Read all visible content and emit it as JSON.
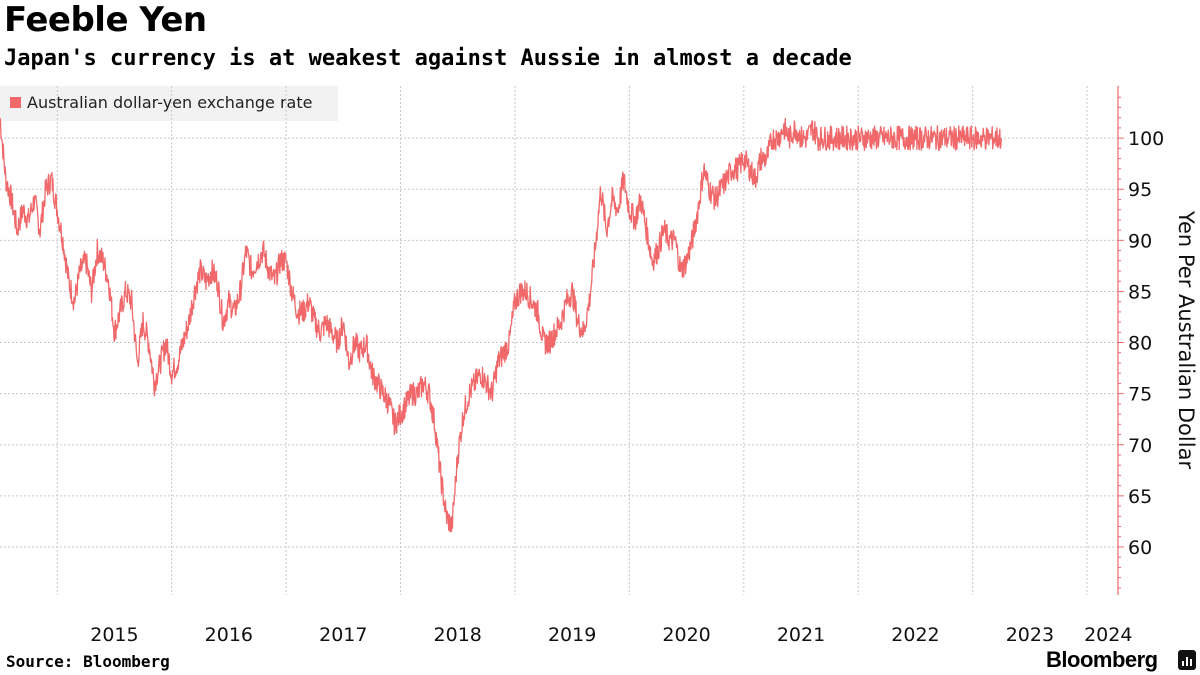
{
  "header": {
    "title": "Feeble Yen",
    "subtitle": "Japan's currency is at weakest against Aussie in almost a decade"
  },
  "footer": {
    "source": "Source: Bloomberg",
    "brand": "Bloomberg"
  },
  "colors": {
    "series": "#f0686a",
    "grid": "#c8c8c8",
    "axis": "#f0686a",
    "legend_bg": "#f2f2f2"
  },
  "chart_data": {
    "type": "line",
    "title": "Feeble Yen",
    "subtitle": "Japan's currency is at weakest against Aussie in almost a decade",
    "xlabel": "",
    "ylabel": "Yen Per Australian Dollar",
    "ylim": [
      55.3,
      105.1
    ],
    "yticks": [
      60,
      65,
      70,
      75,
      80,
      85,
      90,
      95,
      100
    ],
    "xlim": [
      2014.5,
      2024.27
    ],
    "xticks": [
      "2015",
      "2016",
      "2017",
      "2018",
      "2019",
      "2020",
      "2021",
      "2022",
      "2023",
      "2024"
    ],
    "legend": [
      "Australian dollar-yen exchange rate"
    ],
    "legend_position": "top-left",
    "grid": true,
    "series": [
      {
        "name": "Australian dollar-yen exchange rate",
        "x": [
          2014.5,
          2014.55,
          2014.6,
          2014.65,
          2014.7,
          2014.75,
          2014.8,
          2014.85,
          2014.9,
          2014.95,
          2015.0,
          2015.05,
          2015.1,
          2015.15,
          2015.2,
          2015.25,
          2015.3,
          2015.35,
          2015.4,
          2015.45,
          2015.5,
          2015.55,
          2015.6,
          2015.65,
          2015.7,
          2015.75,
          2015.8,
          2015.85,
          2015.9,
          2015.95,
          2016.0,
          2016.05,
          2016.1,
          2016.15,
          2016.2,
          2016.25,
          2016.3,
          2016.35,
          2016.4,
          2016.45,
          2016.5,
          2016.55,
          2016.6,
          2016.65,
          2016.7,
          2016.75,
          2016.8,
          2016.85,
          2016.9,
          2016.95,
          2017.0,
          2017.05,
          2017.1,
          2017.15,
          2017.2,
          2017.25,
          2017.3,
          2017.35,
          2017.4,
          2017.45,
          2017.5,
          2017.55,
          2017.6,
          2017.65,
          2017.7,
          2017.75,
          2017.8,
          2017.85,
          2017.9,
          2017.95,
          2018.0,
          2018.05,
          2018.1,
          2018.15,
          2018.2,
          2018.25,
          2018.3,
          2018.35,
          2018.4,
          2018.45,
          2018.5,
          2018.55,
          2018.6,
          2018.65,
          2018.7,
          2018.75,
          2018.8,
          2018.85,
          2018.9,
          2018.95,
          2019.0,
          2019.05,
          2019.1,
          2019.15,
          2019.2,
          2019.25,
          2019.3,
          2019.35,
          2019.4,
          2019.45,
          2019.5,
          2019.55,
          2019.6,
          2019.65,
          2019.7,
          2019.75,
          2019.8,
          2019.85,
          2019.9,
          2019.95,
          2020.0,
          2020.05,
          2020.1,
          2020.15,
          2020.2,
          2020.25,
          2020.3,
          2020.35,
          2020.4,
          2020.45,
          2020.5,
          2020.55,
          2020.6,
          2020.65,
          2020.7,
          2020.75,
          2020.8,
          2020.85,
          2020.9,
          2020.95,
          2021.0,
          2021.05,
          2021.1,
          2021.15,
          2021.2,
          2021.25,
          2021.3,
          2021.35,
          2021.4,
          2021.45,
          2021.5,
          2021.55,
          2021.6,
          2021.65,
          2021.7,
          2021.75,
          2021.8,
          2021.85,
          2021.9,
          2021.95,
          2022.0,
          2022.05,
          2022.1,
          2022.15,
          2022.2,
          2022.25,
          2022.3,
          2022.35,
          2022.4,
          2022.45,
          2022.5,
          2022.55,
          2022.6,
          2022.65,
          2022.7,
          2022.75,
          2022.8,
          2022.85,
          2022.9,
          2022.95,
          2023.0,
          2023.05,
          2023.1,
          2023.15,
          2023.2,
          2023.25
        ],
        "values": [
          102,
          96,
          94,
          91,
          93,
          92,
          94,
          91,
          95,
          96,
          93,
          90,
          86,
          84,
          87,
          88,
          85,
          89,
          88,
          86,
          81,
          83,
          85,
          84,
          78,
          82,
          80,
          76,
          78,
          80,
          77,
          78,
          80,
          82,
          85,
          87,
          86,
          87,
          86,
          82,
          84,
          83,
          85,
          89,
          87,
          88,
          89,
          87,
          86,
          88,
          88,
          85,
          83,
          83,
          84,
          82,
          81,
          82,
          81,
          80,
          82,
          78,
          80,
          79,
          80,
          77,
          76,
          75,
          74,
          72,
          73,
          74,
          75,
          75,
          76,
          75,
          72,
          67,
          63,
          62,
          69,
          73,
          75,
          76,
          77,
          76,
          75,
          78,
          79,
          80,
          84,
          85,
          85,
          84,
          83,
          80,
          80,
          81,
          82,
          84,
          85,
          82,
          81,
          84,
          89,
          95,
          91,
          94,
          93,
          96,
          93,
          92,
          94,
          91,
          88,
          89,
          91,
          90,
          90,
          87,
          88,
          90,
          93,
          97,
          95,
          94,
          95,
          96,
          97,
          97,
          98,
          97,
          96,
          98,
          98,
          100,
          100,
          101,
          100,
          101,
          100,
          100,
          101,
          100,
          100,
          100,
          100,
          100,
          100,
          100,
          100,
          100,
          100,
          100,
          100,
          100,
          100,
          100,
          100,
          100,
          100,
          100,
          100,
          100,
          100,
          100,
          100,
          100,
          100,
          100,
          100,
          100,
          100,
          100,
          100,
          100
        ]
      }
    ]
  }
}
